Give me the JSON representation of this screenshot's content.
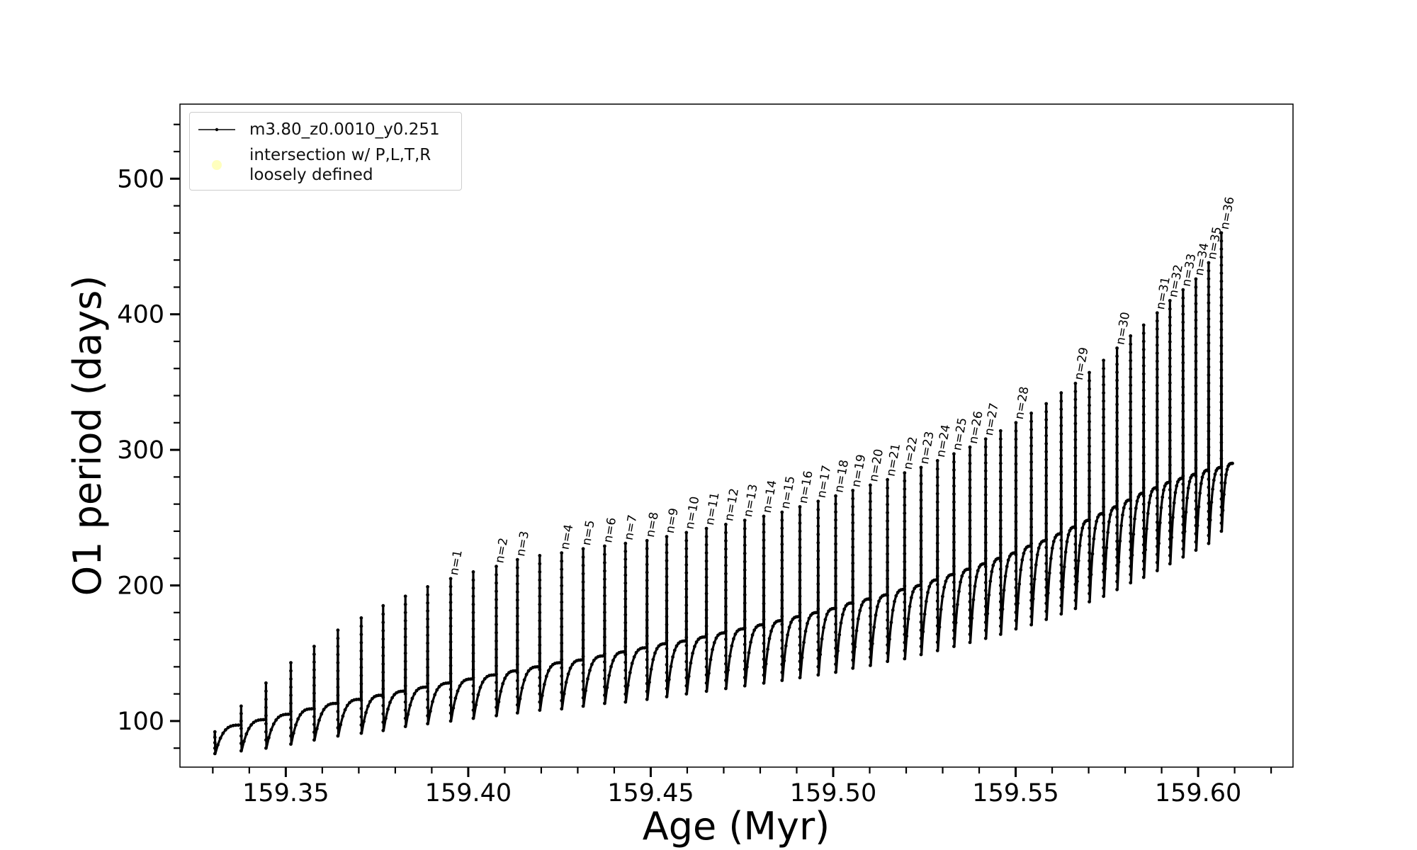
{
  "chart_data": {
    "type": "line",
    "xlabel": "Age (Myr)",
    "ylabel": "O1 period (days)",
    "xlim": [
      159.321,
      159.626
    ],
    "ylim": [
      66,
      555
    ],
    "x_ticks": [
      159.35,
      159.4,
      159.45,
      159.5,
      159.55,
      159.6
    ],
    "x_tick_labels": [
      "159.35",
      "159.40",
      "159.45",
      "159.50",
      "159.55",
      "159.60"
    ],
    "y_ticks": [
      100,
      200,
      300,
      400,
      500
    ],
    "y_tick_labels": [
      "100",
      "200",
      "300",
      "400",
      "500"
    ],
    "grid": false,
    "legend_position": "top-left",
    "legend": [
      {
        "label": "m3.80_z0.0010_y0.251",
        "marker": "line-dot",
        "color": "#000000"
      },
      {
        "label": "intersection w/ P,L,T,R\nloosely defined",
        "marker": "circle",
        "color": "#ffffb3"
      }
    ],
    "series": [
      {
        "name": "m3.80_z0.0010_y0.251",
        "description": "thermal pulse spikes",
        "pulses": [
          {
            "x": 159.3305,
            "base": 88,
            "peak": 92,
            "min": 76
          },
          {
            "x": 159.3377,
            "base": 97,
            "peak": 111,
            "min": 78
          },
          {
            "x": 159.3445,
            "base": 101,
            "peak": 128,
            "min": 80
          },
          {
            "x": 159.3513,
            "base": 105,
            "peak": 143,
            "min": 83
          },
          {
            "x": 159.3577,
            "base": 109,
            "peak": 155,
            "min": 86
          },
          {
            "x": 159.3642,
            "base": 113,
            "peak": 167,
            "min": 89
          },
          {
            "x": 159.3706,
            "base": 116,
            "peak": 176,
            "min": 91
          },
          {
            "x": 159.3766,
            "base": 119,
            "peak": 185,
            "min": 93
          },
          {
            "x": 159.3827,
            "base": 122,
            "peak": 192,
            "min": 96
          },
          {
            "x": 159.3888,
            "base": 125,
            "peak": 199,
            "min": 98
          },
          {
            "x": 159.3951,
            "base": 128,
            "peak": 205,
            "min": 100,
            "label": "n=1"
          },
          {
            "x": 159.4013,
            "base": 131,
            "peak": 210,
            "min": 102
          },
          {
            "x": 159.4076,
            "base": 134,
            "peak": 214,
            "min": 104,
            "label": "n=2"
          },
          {
            "x": 159.4134,
            "base": 137,
            "peak": 219,
            "min": 106,
            "label": "n=3"
          },
          {
            "x": 159.4195,
            "base": 140,
            "peak": 222,
            "min": 108
          },
          {
            "x": 159.4255,
            "base": 143,
            "peak": 224,
            "min": 109,
            "label": "n=4"
          },
          {
            "x": 159.4314,
            "base": 145,
            "peak": 227,
            "min": 111,
            "label": "n=5"
          },
          {
            "x": 159.4373,
            "base": 148,
            "peak": 229,
            "min": 113,
            "label": "n=6"
          },
          {
            "x": 159.443,
            "base": 151,
            "peak": 231,
            "min": 114,
            "label": "n=7"
          },
          {
            "x": 159.4489,
            "base": 154,
            "peak": 233,
            "min": 116,
            "label": "n=8"
          },
          {
            "x": 159.4543,
            "base": 157,
            "peak": 236,
            "min": 118,
            "label": "n=9"
          },
          {
            "x": 159.4597,
            "base": 159,
            "peak": 239,
            "min": 120,
            "label": "n=10"
          },
          {
            "x": 159.4652,
            "base": 162,
            "peak": 242,
            "min": 122,
            "label": "n=11"
          },
          {
            "x": 159.4705,
            "base": 165,
            "peak": 245,
            "min": 124,
            "label": "n=12"
          },
          {
            "x": 159.4757,
            "base": 168,
            "peak": 248,
            "min": 126,
            "label": "n=13"
          },
          {
            "x": 159.4809,
            "base": 171,
            "peak": 251,
            "min": 128,
            "label": "n=14"
          },
          {
            "x": 159.4859,
            "base": 174,
            "peak": 254,
            "min": 130,
            "label": "n=15"
          },
          {
            "x": 159.4908,
            "base": 177,
            "peak": 258,
            "min": 132,
            "label": "n=16"
          },
          {
            "x": 159.4958,
            "base": 180,
            "peak": 262,
            "min": 134,
            "label": "n=17"
          },
          {
            "x": 159.5006,
            "base": 183,
            "peak": 266,
            "min": 136,
            "label": "n=18"
          },
          {
            "x": 159.5053,
            "base": 187,
            "peak": 270,
            "min": 139,
            "label": "n=19"
          },
          {
            "x": 159.5101,
            "base": 190,
            "peak": 274,
            "min": 141,
            "label": "n=20"
          },
          {
            "x": 159.5148,
            "base": 193,
            "peak": 278,
            "min": 144,
            "label": "n=21"
          },
          {
            "x": 159.5195,
            "base": 197,
            "peak": 283,
            "min": 146,
            "label": "n=22"
          },
          {
            "x": 159.524,
            "base": 200,
            "peak": 287,
            "min": 149,
            "label": "n=23"
          },
          {
            "x": 159.5285,
            "base": 204,
            "peak": 292,
            "min": 152,
            "label": "n=24"
          },
          {
            "x": 159.533,
            "base": 208,
            "peak": 297,
            "min": 155,
            "label": "n=25"
          },
          {
            "x": 159.5374,
            "base": 212,
            "peak": 302,
            "min": 158,
            "label": "n=26"
          },
          {
            "x": 159.5417,
            "base": 216,
            "peak": 308,
            "min": 161,
            "label": "n=27"
          },
          {
            "x": 159.5458,
            "base": 220,
            "peak": 314,
            "min": 164
          },
          {
            "x": 159.55,
            "base": 224,
            "peak": 320,
            "min": 168,
            "label": "n=28"
          },
          {
            "x": 159.5542,
            "base": 229,
            "peak": 327,
            "min": 171
          },
          {
            "x": 159.5583,
            "base": 233,
            "peak": 334,
            "min": 175
          },
          {
            "x": 159.5624,
            "base": 238,
            "peak": 342,
            "min": 179
          },
          {
            "x": 159.5663,
            "base": 243,
            "peak": 349,
            "min": 183,
            "label": "n=29"
          },
          {
            "x": 159.5701,
            "base": 248,
            "peak": 357,
            "min": 188
          },
          {
            "x": 159.574,
            "base": 253,
            "peak": 366,
            "min": 192
          },
          {
            "x": 159.5777,
            "base": 258,
            "peak": 375,
            "min": 197,
            "label": "n=30"
          },
          {
            "x": 159.5814,
            "base": 263,
            "peak": 384,
            "min": 202
          },
          {
            "x": 159.585,
            "base": 268,
            "peak": 392,
            "min": 206
          },
          {
            "x": 159.5887,
            "base": 272,
            "peak": 401,
            "min": 211,
            "label": "n=31"
          },
          {
            "x": 159.5922,
            "base": 276,
            "peak": 410,
            "min": 216,
            "label": "n=32"
          },
          {
            "x": 159.5958,
            "base": 279,
            "peak": 418,
            "min": 221,
            "label": "n=33"
          },
          {
            "x": 159.5993,
            "base": 282,
            "peak": 426,
            "min": 226,
            "label": "n=34"
          },
          {
            "x": 159.6028,
            "base": 285,
            "peak": 438,
            "min": 231,
            "label": "n=35"
          },
          {
            "x": 159.6063,
            "base": 287,
            "peak": 460,
            "min": 240,
            "label": "n=36"
          }
        ],
        "end": {
          "x": 159.6094,
          "y": 290
        }
      }
    ]
  }
}
